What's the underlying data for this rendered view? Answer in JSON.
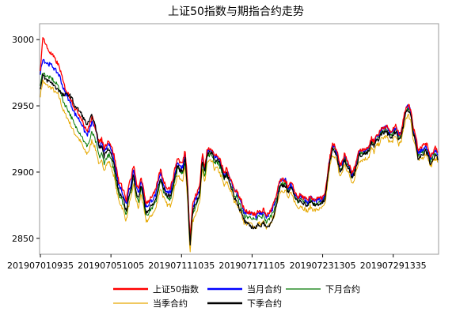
{
  "chart_data": {
    "type": "line",
    "title": "上证50指数与期指合约走势",
    "ylim": [
      2838,
      3012
    ],
    "yticks": [
      2850,
      2900,
      2950,
      3000
    ],
    "x_tick_labels": [
      "201907010935",
      "201907051005",
      "201907111035",
      "201907171105",
      "201907231305",
      "201907291335"
    ],
    "x_tick_index": [
      0,
      114,
      228,
      342,
      456,
      570
    ],
    "n_points": 643,
    "grid": false,
    "legend_position": "bottom",
    "colors": {
      "上证50指数": "#ff0000",
      "当月合约": "#0000ff",
      "下月合约": "#007700",
      "当季合约": "#e6a800",
      "下季合约": "#000000"
    },
    "series": [
      {
        "name": "上证50指数",
        "values": [
          2975,
          3003,
          2997,
          2993,
          2990,
          2988,
          2985,
          2982,
          2978,
          2970,
          2964,
          2960,
          2957,
          2953,
          2948,
          2946,
          2943,
          2940,
          2934,
          2931,
          2935,
          2942,
          2936,
          2930,
          2922,
          2925,
          2918,
          2922,
          2924,
          2919,
          2913,
          2903,
          2893,
          2890,
          2886,
          2878,
          2890,
          2895,
          2906,
          2893,
          2886,
          2897,
          2887,
          2877,
          2878,
          2881,
          2883,
          2886,
          2895,
          2902,
          2895,
          2890,
          2888,
          2888,
          2895,
          2904,
          2911,
          2907,
          2907,
          2917,
          2893,
          2850,
          2875,
          2881,
          2885,
          2890,
          2915,
          2903,
          2917,
          2918,
          2918,
          2912,
          2913,
          2910,
          2905,
          2899,
          2903,
          2897,
          2893,
          2887,
          2886,
          2882,
          2878,
          2872,
          2870,
          2870,
          2870,
          2868,
          2868,
          2871,
          2870,
          2872,
          2867,
          2869,
          2871,
          2876,
          2880,
          2890,
          2894,
          2894,
          2894,
          2888,
          2892,
          2889,
          2884,
          2881,
          2883,
          2881,
          2880,
          2878,
          2882,
          2880,
          2879,
          2880,
          2880,
          2881,
          2883,
          2897,
          2911,
          2921,
          2920,
          2915,
          2905,
          2907,
          2914,
          2909,
          2905,
          2899,
          2903,
          2910,
          2917,
          2917,
          2918,
          2917,
          2920,
          2926,
          2923,
          2928,
          2929,
          2933,
          2934,
          2935,
          2932,
          2930,
          2933,
          2935,
          2929,
          2930,
          2940,
          2949,
          2951,
          2947,
          2934,
          2928,
          2917,
          2919,
          2920,
          2922,
          2919,
          2912,
          2915,
          2919,
          2916
        ]
      },
      {
        "name": "当月合约",
        "values": [
          2975,
          2986,
          2983,
          2982,
          2981,
          2980,
          2977,
          2975,
          2972,
          2965,
          2960,
          2957,
          2953,
          2949,
          2944,
          2942,
          2939,
          2936,
          2931,
          2928,
          2931,
          2938,
          2934,
          2928,
          2919,
          2922,
          2915,
          2919,
          2921,
          2916,
          2910,
          2899,
          2890,
          2887,
          2882,
          2875,
          2887,
          2891,
          2903,
          2890,
          2883,
          2895,
          2885,
          2874,
          2875,
          2878,
          2880,
          2883,
          2892,
          2899,
          2892,
          2887,
          2885,
          2885,
          2892,
          2901,
          2908,
          2904,
          2904,
          2914,
          2890,
          2846,
          2872,
          2878,
          2882,
          2887,
          2912,
          2901,
          2916,
          2917,
          2917,
          2911,
          2912,
          2909,
          2903,
          2897,
          2901,
          2896,
          2892,
          2886,
          2885,
          2880,
          2876,
          2870,
          2869,
          2869,
          2869,
          2867,
          2866,
          2870,
          2868,
          2871,
          2865,
          2867,
          2870,
          2874,
          2879,
          2889,
          2894,
          2894,
          2894,
          2887,
          2891,
          2888,
          2883,
          2880,
          2882,
          2880,
          2879,
          2877,
          2881,
          2879,
          2878,
          2879,
          2879,
          2880,
          2882,
          2897,
          2911,
          2920,
          2919,
          2914,
          2904,
          2906,
          2913,
          2908,
          2905,
          2898,
          2902,
          2909,
          2916,
          2916,
          2917,
          2917,
          2919,
          2925,
          2922,
          2927,
          2928,
          2932,
          2933,
          2934,
          2931,
          2929,
          2932,
          2934,
          2928,
          2929,
          2939,
          2948,
          2950,
          2946,
          2932,
          2926,
          2914,
          2916,
          2917,
          2920,
          2917,
          2910,
          2913,
          2917,
          2914
        ]
      },
      {
        "name": "下月合约",
        "values": [
          2965,
          2976,
          2973,
          2972,
          2971,
          2970,
          2967,
          2966,
          2962,
          2955,
          2951,
          2948,
          2944,
          2940,
          2935,
          2933,
          2930,
          2927,
          2922,
          2920,
          2923,
          2930,
          2926,
          2920,
          2911,
          2914,
          2907,
          2911,
          2913,
          2908,
          2902,
          2892,
          2883,
          2880,
          2875,
          2868,
          2880,
          2885,
          2897,
          2884,
          2877,
          2889,
          2879,
          2868,
          2869,
          2872,
          2874,
          2877,
          2886,
          2893,
          2887,
          2882,
          2880,
          2880,
          2887,
          2896,
          2903,
          2899,
          2899,
          2909,
          2885,
          2842,
          2867,
          2873,
          2877,
          2882,
          2908,
          2897,
          2912,
          2913,
          2913,
          2907,
          2908,
          2905,
          2900,
          2894,
          2898,
          2893,
          2889,
          2883,
          2882,
          2877,
          2873,
          2867,
          2866,
          2866,
          2866,
          2864,
          2863,
          2867,
          2865,
          2868,
          2862,
          2864,
          2867,
          2871,
          2876,
          2886,
          2891,
          2891,
          2891,
          2885,
          2889,
          2886,
          2881,
          2878,
          2880,
          2878,
          2877,
          2875,
          2879,
          2877,
          2876,
          2877,
          2877,
          2878,
          2880,
          2895,
          2909,
          2918,
          2917,
          2912,
          2902,
          2904,
          2911,
          2906,
          2903,
          2896,
          2900,
          2907,
          2914,
          2914,
          2915,
          2915,
          2917,
          2923,
          2920,
          2925,
          2926,
          2930,
          2931,
          2932,
          2929,
          2927,
          2930,
          2932,
          2926,
          2927,
          2937,
          2946,
          2948,
          2944,
          2930,
          2924,
          2912,
          2914,
          2915,
          2918,
          2915,
          2908,
          2911,
          2915,
          2912
        ]
      },
      {
        "name": "当季合约",
        "values": [
          2958,
          2969,
          2966,
          2965,
          2964,
          2963,
          2960,
          2959,
          2955,
          2948,
          2944,
          2941,
          2937,
          2933,
          2929,
          2927,
          2924,
          2921,
          2916,
          2914,
          2917,
          2924,
          2920,
          2914,
          2905,
          2908,
          2902,
          2906,
          2908,
          2903,
          2897,
          2887,
          2878,
          2875,
          2870,
          2863,
          2875,
          2880,
          2892,
          2879,
          2872,
          2884,
          2874,
          2863,
          2864,
          2867,
          2869,
          2872,
          2881,
          2888,
          2882,
          2877,
          2875,
          2875,
          2882,
          2891,
          2898,
          2894,
          2894,
          2904,
          2880,
          2839,
          2862,
          2868,
          2872,
          2877,
          2903,
          2892,
          2907,
          2908,
          2908,
          2902,
          2903,
          2900,
          2895,
          2889,
          2893,
          2888,
          2884,
          2878,
          2877,
          2872,
          2868,
          2862,
          2861,
          2861,
          2861,
          2859,
          2858,
          2862,
          2860,
          2863,
          2857,
          2859,
          2862,
          2866,
          2871,
          2881,
          2886,
          2886,
          2886,
          2880,
          2884,
          2881,
          2876,
          2873,
          2875,
          2873,
          2872,
          2870,
          2874,
          2872,
          2871,
          2872,
          2872,
          2873,
          2875,
          2890,
          2904,
          2913,
          2912,
          2907,
          2897,
          2899,
          2906,
          2901,
          2898,
          2891,
          2895,
          2902,
          2909,
          2909,
          2910,
          2910,
          2912,
          2918,
          2915,
          2920,
          2921,
          2925,
          2926,
          2927,
          2924,
          2922,
          2925,
          2927,
          2921,
          2922,
          2932,
          2941,
          2943,
          2939,
          2925,
          2919,
          2908,
          2910,
          2911,
          2914,
          2911,
          2904,
          2907,
          2911,
          2908
        ]
      },
      {
        "name": "下季合约",
        "values": [
          2962,
          2973,
          2970,
          2969,
          2968,
          2967,
          2964,
          2963,
          2961,
          2958,
          2958,
          2959,
          2958,
          2955,
          2950,
          2948,
          2946,
          2943,
          2939,
          2936,
          2938,
          2943,
          2937,
          2930,
          2918,
          2920,
          2912,
          2917,
          2918,
          2912,
          2906,
          2895,
          2885,
          2882,
          2878,
          2870,
          2882,
          2887,
          2899,
          2886,
          2879,
          2891,
          2881,
          2870,
          2871,
          2874,
          2876,
          2879,
          2888,
          2895,
          2889,
          2884,
          2882,
          2882,
          2889,
          2898,
          2905,
          2901,
          2901,
          2911,
          2887,
          2844,
          2869,
          2875,
          2879,
          2884,
          2910,
          2899,
          2914,
          2915,
          2915,
          2909,
          2910,
          2907,
          2901,
          2895,
          2899,
          2893,
          2888,
          2881,
          2879,
          2873,
          2869,
          2864,
          2861,
          2860,
          2859,
          2858,
          2858,
          2861,
          2859,
          2863,
          2857,
          2859,
          2862,
          2867,
          2873,
          2884,
          2890,
          2890,
          2890,
          2884,
          2888,
          2885,
          2880,
          2877,
          2879,
          2877,
          2876,
          2874,
          2878,
          2876,
          2875,
          2876,
          2876,
          2877,
          2879,
          2894,
          2908,
          2917,
          2916,
          2911,
          2901,
          2903,
          2910,
          2905,
          2902,
          2895,
          2899,
          2906,
          2913,
          2913,
          2914,
          2914,
          2916,
          2922,
          2919,
          2924,
          2925,
          2929,
          2930,
          2931,
          2928,
          2926,
          2929,
          2931,
          2925,
          2926,
          2936,
          2945,
          2947,
          2943,
          2929,
          2923,
          2910,
          2912,
          2913,
          2916,
          2913,
          2906,
          2909,
          2913,
          2910
        ]
      }
    ]
  }
}
